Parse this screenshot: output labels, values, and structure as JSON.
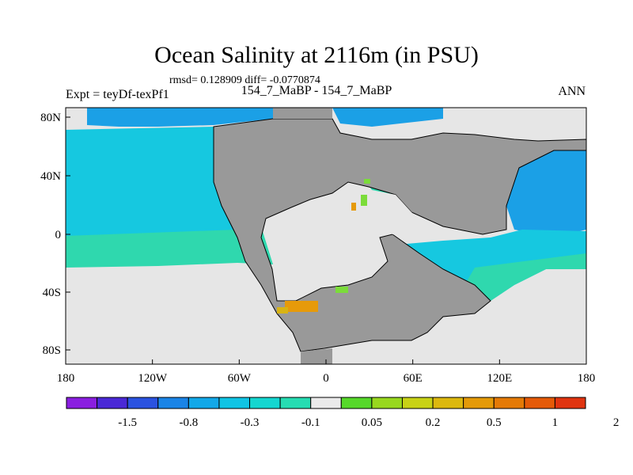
{
  "title": "Ocean Salinity at 2116m (in PSU)",
  "stats": "rmsd= 0.128909 diff= -0.0770874",
  "left_label": "Expt = teyDf-texPf1",
  "center_label": "154_7_MaBP - 154_7_MaBP",
  "right_label": "ANN",
  "colors": {
    "land": "#999999",
    "coast": "#000000",
    "neutral": "#e6e6e6",
    "teal": "#2fd8ae",
    "cyan": "#16c8e0",
    "blue": "#1ba0e6",
    "green": "#7bdc3a",
    "orange": "#e69a0a",
    "gold": "#d8b414"
  },
  "chart_data": {
    "type": "map",
    "variable": "Ocean salinity difference",
    "depth": "2116m",
    "units": "PSU",
    "x_ticks": [
      "180",
      "120W",
      "60W",
      "0",
      "60E",
      "120E",
      "180"
    ],
    "y_ticks": [
      "80N",
      "40N",
      "0",
      "40S",
      "80S"
    ],
    "colorbar": {
      "colors": [
        "#8a1ee0",
        "#4a28d6",
        "#2a52e0",
        "#1a84e6",
        "#12a8e8",
        "#10c4e4",
        "#14d6d0",
        "#26dcb2",
        "#eaeaea",
        "#56d82a",
        "#98d81e",
        "#c8d216",
        "#dcb80e",
        "#e49a08",
        "#e47a06",
        "#e45a08",
        "#e03410"
      ],
      "labels": [
        "-1.5",
        "-0.8",
        "-0.3",
        "-0.1",
        "0.05",
        "0.2",
        "0.5",
        "1",
        "2"
      ]
    }
  }
}
